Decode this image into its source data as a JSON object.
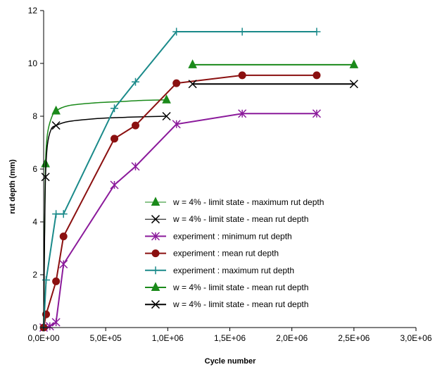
{
  "chart_data": {
    "type": "line",
    "title": "",
    "xlabel": "Cycle number",
    "ylabel": "rut depth (mm)",
    "xlim": [
      0,
      3000000
    ],
    "ylim": [
      0,
      12
    ],
    "x_ticks": [
      {
        "value": 0,
        "label": "0,0E+00"
      },
      {
        "value": 500000,
        "label": "5,0E+05"
      },
      {
        "value": 1000000,
        "label": "1,0E+06"
      },
      {
        "value": 1500000,
        "label": "1,5E+06"
      },
      {
        "value": 2000000,
        "label": "2,0E+06"
      },
      {
        "value": 2500000,
        "label": "2,5E+06"
      },
      {
        "value": 3000000,
        "label": "3,0E+06"
      }
    ],
    "y_ticks": [
      {
        "value": 0,
        "label": "0"
      },
      {
        "value": 2,
        "label": "2"
      },
      {
        "value": 4,
        "label": "4"
      },
      {
        "value": 6,
        "label": "6"
      },
      {
        "value": 8,
        "label": "8"
      },
      {
        "value": 10,
        "label": "10"
      },
      {
        "value": 12,
        "label": "12"
      }
    ],
    "grid": false,
    "legend_position": "lower-right",
    "series": [
      {
        "name": "w = 4% - limit state - maximum rut depth",
        "color": "#1a8a1a",
        "marker": "triangle",
        "curve": "smooth",
        "points": [
          [
            0,
            0
          ],
          [
            3000,
            1.5
          ],
          [
            8000,
            3.8
          ],
          [
            15000,
            6.2
          ],
          [
            30000,
            7.3
          ],
          [
            60000,
            7.9
          ],
          [
            100000,
            8.2
          ],
          [
            200000,
            8.4
          ],
          [
            400000,
            8.5
          ],
          [
            600000,
            8.55
          ],
          [
            800000,
            8.6
          ],
          [
            990000,
            8.62
          ]
        ],
        "markers": [
          [
            15000,
            6.2
          ],
          [
            100000,
            8.2
          ],
          [
            990000,
            8.62
          ]
        ]
      },
      {
        "name": "w = 4% - limit state - mean rut depth",
        "color": "#000000",
        "marker": "x",
        "curve": "smooth",
        "points": [
          [
            0,
            0
          ],
          [
            3000,
            1.4
          ],
          [
            8000,
            3.6
          ],
          [
            15000,
            5.7
          ],
          [
            30000,
            6.9
          ],
          [
            60000,
            7.5
          ],
          [
            100000,
            7.65
          ],
          [
            200000,
            7.8
          ],
          [
            400000,
            7.9
          ],
          [
            600000,
            7.95
          ],
          [
            800000,
            7.98
          ],
          [
            990000,
            8.0
          ]
        ],
        "markers": [
          [
            15000,
            5.7
          ],
          [
            100000,
            7.65
          ],
          [
            990000,
            8.0
          ]
        ]
      },
      {
        "name": "experiment : minimum rut depth",
        "color": "#8b1a9b",
        "marker": "star",
        "curve": "straight",
        "points": [
          [
            0,
            0
          ],
          [
            50000,
            0.05
          ],
          [
            100000,
            0.2
          ],
          [
            160000,
            2.4
          ],
          [
            570000,
            5.4
          ],
          [
            740000,
            6.1
          ],
          [
            1070000,
            7.7
          ],
          [
            1600000,
            8.1
          ],
          [
            2200000,
            8.1
          ]
        ],
        "markers": [
          [
            0,
            0
          ],
          [
            50000,
            0.05
          ],
          [
            100000,
            0.2
          ],
          [
            160000,
            2.4
          ],
          [
            570000,
            5.4
          ],
          [
            740000,
            6.1
          ],
          [
            1070000,
            7.7
          ],
          [
            1600000,
            8.1
          ],
          [
            2200000,
            8.1
          ]
        ]
      },
      {
        "name": "experiment : mean rut depth",
        "color": "#8b1010",
        "marker": "circle",
        "curve": "straight",
        "points": [
          [
            0,
            0
          ],
          [
            20000,
            0.5
          ],
          [
            100000,
            1.75
          ],
          [
            160000,
            3.45
          ],
          [
            570000,
            7.15
          ],
          [
            740000,
            7.65
          ],
          [
            1070000,
            9.25
          ],
          [
            1600000,
            9.55
          ],
          [
            2200000,
            9.55
          ]
        ],
        "markers": [
          [
            0,
            0
          ],
          [
            20000,
            0.5
          ],
          [
            100000,
            1.75
          ],
          [
            160000,
            3.45
          ],
          [
            570000,
            7.15
          ],
          [
            740000,
            7.65
          ],
          [
            1070000,
            9.25
          ],
          [
            1600000,
            9.55
          ],
          [
            2200000,
            9.55
          ]
        ]
      },
      {
        "name": "experiment : maximum rut depth",
        "color": "#1a8a8a",
        "marker": "plus",
        "curve": "straight",
        "points": [
          [
            0,
            0
          ],
          [
            20000,
            1.8
          ],
          [
            100000,
            4.3
          ],
          [
            160000,
            4.3
          ],
          [
            570000,
            8.3
          ],
          [
            740000,
            9.3
          ],
          [
            1070000,
            11.2
          ],
          [
            1600000,
            11.2
          ],
          [
            2200000,
            11.2
          ]
        ],
        "markers": [
          [
            0,
            0
          ],
          [
            20000,
            1.8
          ],
          [
            100000,
            4.3
          ],
          [
            160000,
            4.3
          ],
          [
            570000,
            8.3
          ],
          [
            740000,
            9.3
          ],
          [
            1070000,
            11.2
          ],
          [
            1600000,
            11.2
          ],
          [
            2200000,
            11.2
          ]
        ]
      },
      {
        "name": "w = 4% - limit state - mean rut depth",
        "color": "#1a8a1a",
        "marker": "triangle",
        "curve": "straight",
        "points": [
          [
            1200000,
            9.95
          ],
          [
            2500000,
            9.95
          ]
        ],
        "markers": [
          [
            1200000,
            9.95
          ],
          [
            2500000,
            9.95
          ]
        ]
      },
      {
        "name": "w = 4% - limit state - mean rut depth",
        "color": "#000000",
        "marker": "x",
        "curve": "straight",
        "points": [
          [
            1200000,
            9.22
          ],
          [
            2500000,
            9.22
          ]
        ],
        "markers": [
          [
            1200000,
            9.22
          ],
          [
            2500000,
            9.22
          ]
        ]
      }
    ]
  }
}
